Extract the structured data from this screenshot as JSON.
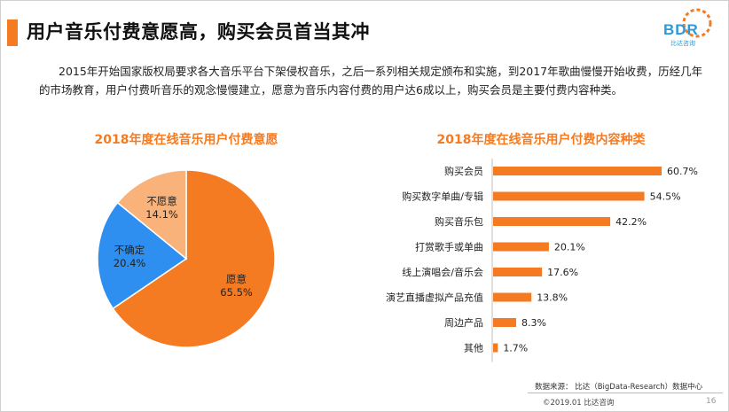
{
  "header": {
    "title": "用户音乐付费意愿高，购买会员首当其冲",
    "logo_text": "BDR",
    "logo_sub": "比达咨询"
  },
  "intro": "2015年开始国家版权局要求各大音乐平台下架侵权音乐，之后一系列相关规定颁布和实施，到2017年歌曲慢慢开始收费，历经几年的市场教育，用户付费听音乐的观念慢慢建立，愿意为音乐内容付费的用户达6成以上，购买会员是主要付费内容种类。",
  "footer": {
    "source": "数据来源： 比达（BigData-Research）数据中心",
    "copyright": "©2019.01 比达咨询",
    "page": "16"
  },
  "colors": {
    "accent": "#f47b22",
    "blue": "#2e8ff0",
    "light_orange": "#f8b27a",
    "logo": "#2a9ad8"
  },
  "chart_data": [
    {
      "type": "pie",
      "title": "2018年度在线音乐用户付费意愿",
      "slices": [
        {
          "label": "愿意",
          "value": 65.5,
          "value_label": "65.5%",
          "color": "#f47b22"
        },
        {
          "label": "不确定",
          "value": 20.4,
          "value_label": "20.4%",
          "color": "#2e8ff0"
        },
        {
          "label": "不愿意",
          "value": 14.1,
          "value_label": "14.1%",
          "color": "#f8b27a"
        }
      ]
    },
    {
      "type": "bar",
      "orientation": "horizontal",
      "title": "2018年度在线音乐用户付费内容种类",
      "categories": [
        "购买会员",
        "购买数字单曲/专辑",
        "购买音乐包",
        "打赏歌手或单曲",
        "线上演唱会/音乐会",
        "演艺直播虚拟产品充值",
        "周边产品",
        "其他"
      ],
      "values": [
        60.7,
        54.5,
        42.2,
        20.1,
        17.6,
        13.8,
        8.3,
        1.7
      ],
      "value_labels": [
        "60.7%",
        "54.5%",
        "42.2%",
        "20.1%",
        "17.6%",
        "13.8%",
        "8.3%",
        "1.7%"
      ],
      "color": "#f47b22",
      "xlim": [
        0,
        60.7
      ],
      "grid": false,
      "legend": "none"
    }
  ]
}
